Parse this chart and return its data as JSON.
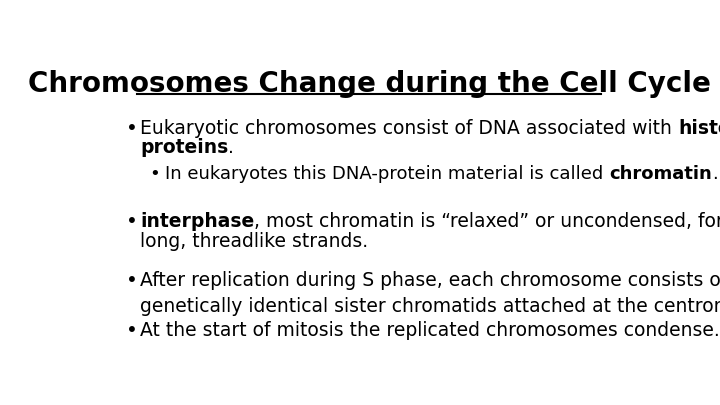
{
  "title": "Chromosomes Change during the Cell Cycle",
  "background_color": "#ffffff",
  "text_color": "#000000",
  "title_fontsize": 20,
  "body_fontsize": 13.5,
  "bullet1_prefix": "Eukaryotic chromosomes consist of DNA associated with ",
  "bullet1_bold": "histone",
  "bullet1_line2_bold": "proteins",
  "bullet1_line2_suffix": ".",
  "sub_bullet1_prefix": "In eukaryotes this DNA-protein material is called ",
  "sub_bullet1_bold": "chromatin",
  "sub_bullet1_suffix": ".",
  "bullet2_bold": "interphase",
  "bullet2_suffix": ", most chromatin is “relaxed” or uncondensed, forming",
  "bullet2_line2": "long, threadlike strands.",
  "bullet3_line1": "After replication during S phase, each chromosome consists of two",
  "bullet3_line2": "genetically identical sister chromatids attached at the centromere.",
  "bullet4": "At the start of mitosis the replicated chromosomes condense.",
  "bx": 0.09,
  "sub_indent": 0.045,
  "lh": 0.115
}
